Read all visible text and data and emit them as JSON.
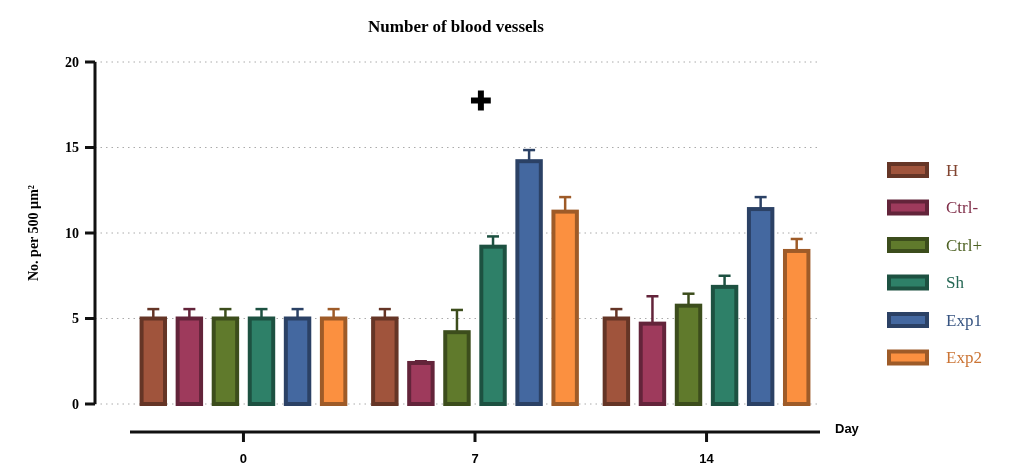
{
  "chart_data": {
    "type": "bar",
    "title": "Number of blood vessels",
    "xlabel": "Day",
    "ylabel": "No. per 500 µm²",
    "categories": [
      "0",
      "7",
      "14"
    ],
    "series": [
      {
        "name": "H",
        "color": "#a0543c",
        "values": [
          5,
          5,
          5
        ],
        "errors": [
          [
            5,
            5.55
          ],
          [
            5,
            5.55
          ],
          [
            5,
            5.55
          ]
        ]
      },
      {
        "name": "Ctrl-",
        "color": "#9e3a5c",
        "values": [
          5,
          2.4,
          4.7
        ],
        "errors": [
          [
            5,
            5.55
          ],
          [
            2.4,
            2.5
          ],
          [
            4.7,
            6.3
          ]
        ]
      },
      {
        "name": "Ctrl+",
        "color": "#607a2c",
        "values": [
          5,
          4.2,
          5.75
        ],
        "errors": [
          [
            5,
            5.55
          ],
          [
            4.2,
            5.5
          ],
          [
            5.75,
            6.45
          ]
        ]
      },
      {
        "name": "Sh",
        "color": "#2e8068",
        "values": [
          5,
          9.2,
          6.85
        ],
        "errors": [
          [
            5,
            5.55
          ],
          [
            9.2,
            9.8
          ],
          [
            6.85,
            7.5
          ]
        ]
      },
      {
        "name": "Exp1",
        "color": "#4468a0",
        "values": [
          5,
          14.2,
          11.4
        ],
        "errors": [
          [
            5,
            5.55
          ],
          [
            14.2,
            14.85
          ],
          [
            11.4,
            12.1
          ]
        ]
      },
      {
        "name": "Exp2",
        "color": "#fb9040",
        "values": [
          5,
          11.25,
          8.95
        ],
        "errors": [
          [
            5,
            5.55
          ],
          [
            11.25,
            12.1
          ],
          [
            8.95,
            9.65
          ]
        ]
      }
    ],
    "annotations": [
      "✚"
    ],
    "ylim": [
      0,
      20
    ],
    "yticks": [
      0,
      5,
      10,
      15,
      20
    ],
    "grid": "y",
    "legend": "right"
  }
}
